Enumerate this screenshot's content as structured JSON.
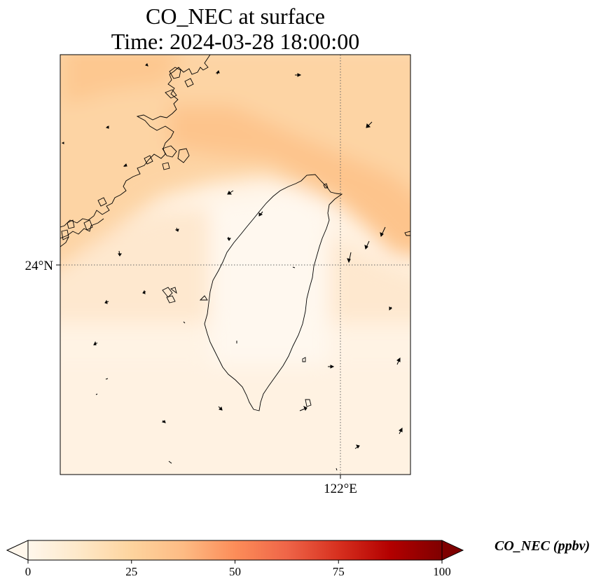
{
  "title": {
    "line1": "CO_NEC at surface",
    "line2": "Time: 2024-03-28 18:00:00"
  },
  "map": {
    "region": "Taiwan and Fujian coast",
    "lat_gridline_label": "24°N",
    "lon_gridline_label": "122°E",
    "coastline_color": "#000000",
    "gridline_style": "dotted",
    "overlay": "wind vectors"
  },
  "colorbar": {
    "colormap": "OrRd",
    "min": 0,
    "max": 100,
    "ticks": [
      0,
      25,
      50,
      75,
      100
    ],
    "tick_labels": [
      "0",
      "25",
      "50",
      "75",
      "100"
    ],
    "extend": "both",
    "units_label": "CO_NEC (ppbv)",
    "colors": [
      "#fff7ec",
      "#fee8c8",
      "#fdd49e",
      "#fdbb84",
      "#fc8d59",
      "#ef6548",
      "#d7301f",
      "#b30000",
      "#7f0000"
    ]
  }
}
